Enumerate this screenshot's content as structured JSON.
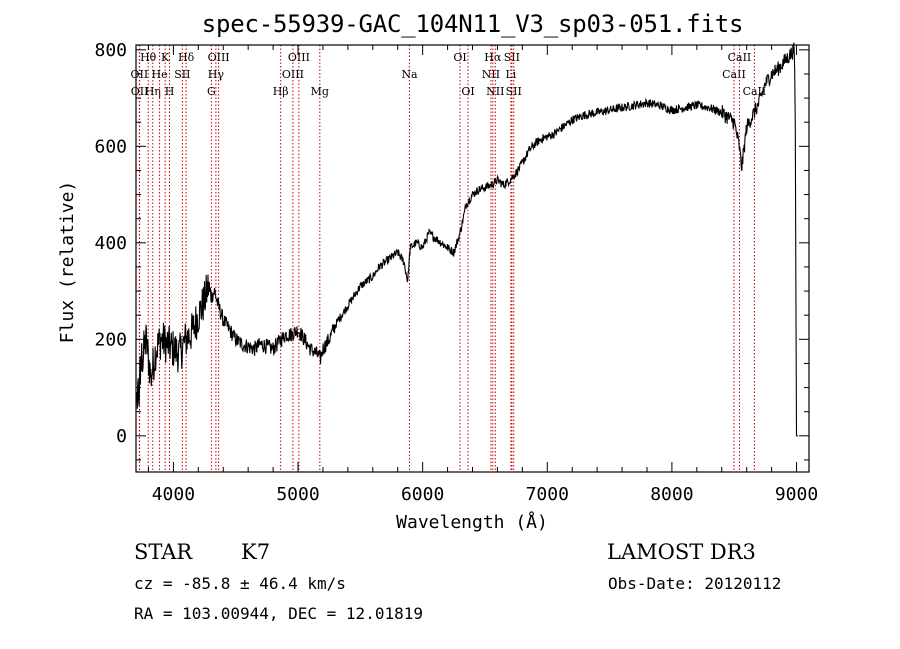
{
  "title": "spec-55939-GAC_104N11_V3_sp03-051.fits",
  "info": {
    "object_class": "STAR",
    "subclass": "K7",
    "survey": "LAMOST DR3",
    "cz": "cz = -85.8 ± 46.4 km/s",
    "obs_date": "Obs-Date: 20120112",
    "radec": "RA = 103.00944, DEC =  12.01819"
  },
  "chart_data": {
    "type": "line",
    "title": "spec-55939-GAC_104N11_V3_sp03-051.fits",
    "xlabel": "Wavelength (Å)",
    "ylabel": "Flux (relative)",
    "xlim": [
      3700,
      9100
    ],
    "ylim": [
      -75,
      810
    ],
    "xticks": [
      4000,
      5000,
      6000,
      7000,
      8000,
      9000
    ],
    "yticks": [
      0,
      200,
      400,
      600,
      800
    ],
    "series": [
      {
        "name": "flux",
        "x": [
          3700,
          3740,
          3780,
          3820,
          3860,
          3900,
          3950,
          4000,
          4050,
          4100,
          4150,
          4200,
          4250,
          4280,
          4300,
          4330,
          4360,
          4400,
          4450,
          4500,
          4550,
          4600,
          4650,
          4700,
          4750,
          4800,
          4850,
          4900,
          4950,
          5000,
          5050,
          5100,
          5150,
          5180,
          5200,
          5250,
          5300,
          5350,
          5400,
          5450,
          5500,
          5550,
          5600,
          5650,
          5700,
          5750,
          5800,
          5850,
          5880,
          5900,
          5950,
          6000,
          6050,
          6100,
          6150,
          6200,
          6250,
          6300,
          6350,
          6400,
          6450,
          6500,
          6550,
          6600,
          6650,
          6700,
          6750,
          6800,
          6850,
          6900,
          6950,
          7000,
          7050,
          7100,
          7150,
          7200,
          7250,
          7300,
          7400,
          7500,
          7600,
          7700,
          7800,
          7900,
          8000,
          8100,
          8200,
          8300,
          8400,
          8450,
          8500,
          8540,
          8560,
          8600,
          8650,
          8700,
          8750,
          8800,
          8850,
          8900,
          8950,
          8980,
          9000,
          9010
        ],
        "y": [
          60,
          150,
          200,
          120,
          180,
          200,
          190,
          180,
          170,
          200,
          215,
          250,
          280,
          310,
          285,
          300,
          270,
          240,
          220,
          200,
          190,
          185,
          180,
          190,
          185,
          180,
          195,
          210,
          210,
          220,
          200,
          180,
          170,
          160,
          180,
          200,
          230,
          250,
          270,
          290,
          310,
          320,
          330,
          350,
          360,
          370,
          380,
          360,
          320,
          390,
          400,
          390,
          420,
          410,
          400,
          390,
          380,
          420,
          480,
          500,
          510,
          515,
          520,
          530,
          520,
          530,
          545,
          565,
          590,
          605,
          615,
          620,
          625,
          635,
          645,
          655,
          660,
          665,
          670,
          675,
          680,
          685,
          690,
          685,
          675,
          680,
          685,
          680,
          670,
          660,
          650,
          600,
          555,
          640,
          665,
          690,
          730,
          750,
          760,
          775,
          790,
          800,
          640,
          0
        ]
      }
    ],
    "line_markers": [
      {
        "label": "Hθ",
        "wl": 3798,
        "row": 1
      },
      {
        "label": "OII",
        "wl": 3727,
        "row": 2
      },
      {
        "label": "OII",
        "wl": 3729,
        "row": 3
      },
      {
        "label": "Hη",
        "wl": 3835,
        "row": 3
      },
      {
        "label": "He",
        "wl": 3889,
        "row": 2
      },
      {
        "label": "K",
        "wl": 3934,
        "row": 1
      },
      {
        "label": "H",
        "wl": 3969,
        "row": 3
      },
      {
        "label": "SII",
        "wl": 4072,
        "row": 2
      },
      {
        "label": "Hδ",
        "wl": 4102,
        "row": 1
      },
      {
        "label": "G",
        "wl": 4305,
        "row": 3
      },
      {
        "label": "Hγ",
        "wl": 4341,
        "row": 2
      },
      {
        "label": "OIII",
        "wl": 4363,
        "row": 1
      },
      {
        "label": "Hβ",
        "wl": 4861,
        "row": 3
      },
      {
        "label": "OIII",
        "wl": 4959,
        "row": 2
      },
      {
        "label": "OIII",
        "wl": 5007,
        "row": 1
      },
      {
        "label": "Mg",
        "wl": 5175,
        "row": 3
      },
      {
        "label": "Na",
        "wl": 5894,
        "row": 2
      },
      {
        "label": "OI",
        "wl": 6300,
        "row": 1
      },
      {
        "label": "OI",
        "wl": 6364,
        "row": 3
      },
      {
        "label": "NII",
        "wl": 6548,
        "row": 2
      },
      {
        "label": "Hα",
        "wl": 6563,
        "row": 1
      },
      {
        "label": "NII",
        "wl": 6583,
        "row": 3
      },
      {
        "label": "Li",
        "wl": 6708,
        "row": 2
      },
      {
        "label": "SII",
        "wl": 6716,
        "row": 1
      },
      {
        "label": "SII",
        "wl": 6731,
        "row": 3
      },
      {
        "label": "CaII",
        "wl": 8498,
        "row": 2
      },
      {
        "label": "CaII",
        "wl": 8542,
        "row": 1
      },
      {
        "label": "CaII",
        "wl": 8662,
        "row": 3
      }
    ]
  }
}
